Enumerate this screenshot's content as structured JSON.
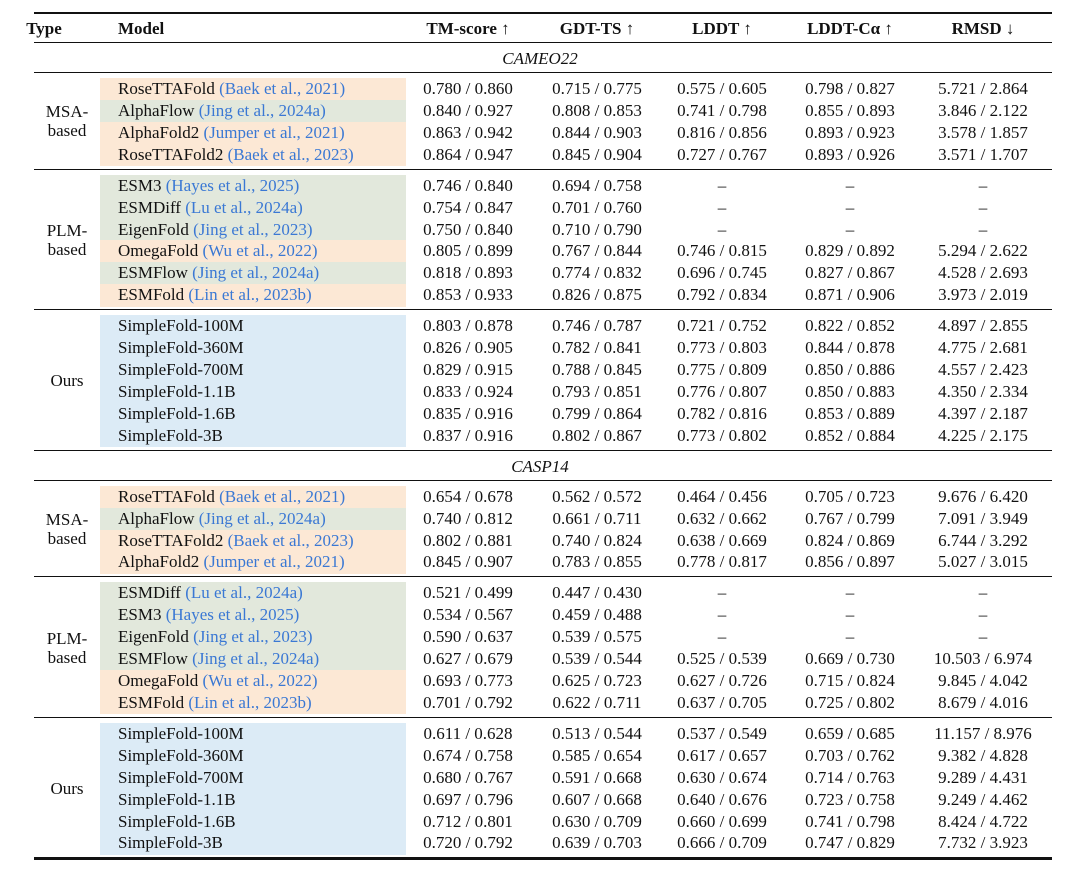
{
  "header": [
    "Type",
    "Model",
    "TM-score ↑",
    "GDT-TS ↑",
    "LDDT ↑",
    "LDDT-Cα ↑",
    "RMSD ↓"
  ],
  "sections": [
    {
      "label": "CAMEO22",
      "groups": [
        {
          "type": [
            "MSA-",
            "based"
          ],
          "rows": [
            {
              "model": "RoseTTAFold",
              "cite": "(Baek et al., 2021)",
              "shade": "#fce8d5",
              "cells": [
                "0.780 / 0.860",
                "0.715 / 0.775",
                "0.575 / 0.605",
                "0.798 / 0.827",
                "5.721 / 2.864"
              ]
            },
            {
              "model": "AlphaFlow",
              "cite": "(Jing et al., 2024a)",
              "shade": "#e2e8dc",
              "cells": [
                "0.840 / 0.927",
                "0.808 / 0.853",
                "0.741 / 0.798",
                "0.855 / 0.893",
                "3.846 / 2.122"
              ]
            },
            {
              "model": "AlphaFold2",
              "cite": "(Jumper et al., 2021)",
              "shade": "#fce8d5",
              "cells": [
                "0.863 / 0.942",
                "0.844 / 0.903",
                "0.816 / 0.856",
                "0.893 / 0.923",
                "3.578 / 1.857"
              ]
            },
            {
              "model": "RoseTTAFold2",
              "cite": "(Baek et al., 2023)",
              "shade": "#fce8d5",
              "cells": [
                "0.864 / 0.947",
                "0.845 / 0.904",
                "0.727 / 0.767",
                "0.893 / 0.926",
                "3.571 / 1.707"
              ]
            }
          ]
        },
        {
          "type": [
            "PLM-",
            "based"
          ],
          "rows": [
            {
              "model": "ESM3",
              "cite": "(Hayes et al., 2025)",
              "shade": "#e2e8dc",
              "cells": [
                "0.746 / 0.840",
                "0.694 / 0.758",
                "–",
                "–",
                "–"
              ]
            },
            {
              "model": "ESMDiff",
              "cite": "(Lu et al., 2024a)",
              "shade": "#e2e8dc",
              "cells": [
                "0.754 / 0.847",
                "0.701 / 0.760",
                "–",
                "–",
                "–"
              ]
            },
            {
              "model": "EigenFold",
              "cite": "(Jing et al., 2023)",
              "shade": "#e2e8dc",
              "cells": [
                "0.750 / 0.840",
                "0.710 / 0.790",
                "–",
                "–",
                "–"
              ]
            },
            {
              "model": "OmegaFold",
              "cite": "(Wu et al., 2022)",
              "shade": "#fce8d5",
              "cells": [
                "0.805 / 0.899",
                "0.767 / 0.844",
                "0.746 / 0.815",
                "0.829 / 0.892",
                "5.294 / 2.622"
              ]
            },
            {
              "model": "ESMFlow",
              "cite": "(Jing et al., 2024a)",
              "shade": "#e2e8dc",
              "cells": [
                "0.818 / 0.893",
                "0.774 / 0.832",
                "0.696 / 0.745",
                "0.827 / 0.867",
                "4.528 / 2.693"
              ]
            },
            {
              "model": "ESMFold",
              "cite": "(Lin et al., 2023b)",
              "shade": "#fce8d5",
              "cells": [
                "0.853 / 0.933",
                "0.826 / 0.875",
                "0.792 / 0.834",
                "0.871 / 0.906",
                "3.973 / 2.019"
              ]
            }
          ]
        },
        {
          "type": [
            "Ours"
          ],
          "rows": [
            {
              "model": "SimpleFold-100M",
              "shade": "#dcebf6",
              "cells": [
                "0.803 / 0.878",
                "0.746 / 0.787",
                "0.721 / 0.752",
                "0.822 / 0.852",
                "4.897 / 2.855"
              ]
            },
            {
              "model": "SimpleFold-360M",
              "shade": "#dcebf6",
              "cells": [
                "0.826 / 0.905",
                "0.782 / 0.841",
                "0.773 / 0.803",
                "0.844 / 0.878",
                "4.775 / 2.681"
              ]
            },
            {
              "model": "SimpleFold-700M",
              "shade": "#dcebf6",
              "cells": [
                "0.829 / 0.915",
                "0.788 / 0.845",
                "0.775 / 0.809",
                "0.850 / 0.886",
                "4.557 / 2.423"
              ]
            },
            {
              "model": "SimpleFold-1.1B",
              "shade": "#dcebf6",
              "cells": [
                "0.833 / 0.924",
                "0.793 / 0.851",
                "0.776 / 0.807",
                "0.850 / 0.883",
                "4.350 / 2.334"
              ]
            },
            {
              "model": "SimpleFold-1.6B",
              "shade": "#dcebf6",
              "cells": [
                "0.835 / 0.916",
                "0.799 / 0.864",
                "0.782 / 0.816",
                "0.853 / 0.889",
                "4.397 / 2.187"
              ]
            },
            {
              "model": "SimpleFold-3B",
              "shade": "#dcebf6",
              "cells": [
                "0.837 / 0.916",
                "0.802 / 0.867",
                "0.773 / 0.802",
                "0.852 / 0.884",
                "4.225 / 2.175"
              ]
            }
          ]
        }
      ]
    },
    {
      "label": "CASP14",
      "groups": [
        {
          "type": [
            "MSA-",
            "based"
          ],
          "rows": [
            {
              "model": "RoseTTAFold",
              "cite": "(Baek et al., 2021)",
              "shade": "#fce8d5",
              "cells": [
                "0.654 / 0.678",
                "0.562 / 0.572",
                "0.464 / 0.456",
                "0.705 / 0.723",
                "9.676 / 6.420"
              ]
            },
            {
              "model": "AlphaFlow",
              "cite": "(Jing et al., 2024a)",
              "shade": "#e2e8dc",
              "cells": [
                "0.740 / 0.812",
                "0.661 / 0.711",
                "0.632 / 0.662",
                "0.767 / 0.799",
                "7.091 / 3.949"
              ]
            },
            {
              "model": "RoseTTAFold2",
              "cite": "(Baek et al., 2023)",
              "shade": "#fce8d5",
              "cells": [
                "0.802 / 0.881",
                "0.740 / 0.824",
                "0.638 / 0.669",
                "0.824 / 0.869",
                "6.744 / 3.292"
              ]
            },
            {
              "model": "AlphaFold2",
              "cite": "(Jumper et al., 2021)",
              "shade": "#fce8d5",
              "cells": [
                "0.845 / 0.907",
                "0.783 / 0.855",
                "0.778 / 0.817",
                "0.856 / 0.897",
                "5.027 / 3.015"
              ]
            }
          ]
        },
        {
          "type": [
            "PLM-",
            "based"
          ],
          "rows": [
            {
              "model": "ESMDiff",
              "cite": "(Lu et al., 2024a)",
              "shade": "#e2e8dc",
              "cells": [
                "0.521 / 0.499",
                "0.447 / 0.430",
                "–",
                "–",
                "–"
              ]
            },
            {
              "model": "ESM3",
              "cite": "(Hayes et al., 2025)",
              "shade": "#e2e8dc",
              "cells": [
                "0.534 / 0.567",
                "0.459 / 0.488",
                "–",
                "–",
                "–"
              ]
            },
            {
              "model": "EigenFold",
              "cite": "(Jing et al., 2023)",
              "shade": "#e2e8dc",
              "cells": [
                "0.590 / 0.637",
                "0.539 / 0.575",
                "–",
                "–",
                "–"
              ]
            },
            {
              "model": "ESMFlow",
              "cite": "(Jing et al., 2024a)",
              "shade": "#e2e8dc",
              "cells": [
                "0.627 / 0.679",
                "0.539 / 0.544",
                "0.525 / 0.539",
                "0.669 / 0.730",
                "10.503 / 6.974"
              ]
            },
            {
              "model": "OmegaFold",
              "cite": "(Wu et al., 2022)",
              "shade": "#fce8d5",
              "cells": [
                "0.693 / 0.773",
                "0.625 / 0.723",
                "0.627 / 0.726",
                "0.715 / 0.824",
                "9.845 / 4.042"
              ]
            },
            {
              "model": "ESMFold",
              "cite": "(Lin et al., 2023b)",
              "shade": "#fce8d5",
              "cells": [
                "0.701 / 0.792",
                "0.622 / 0.711",
                "0.637 / 0.705",
                "0.725 / 0.802",
                "8.679 / 4.016"
              ]
            }
          ]
        },
        {
          "type": [
            "Ours"
          ],
          "rows": [
            {
              "model": "SimpleFold-100M",
              "shade": "#dcebf6",
              "cells": [
                "0.611 / 0.628",
                "0.513 / 0.544",
                "0.537 / 0.549",
                "0.659 / 0.685",
                "11.157 / 8.976"
              ]
            },
            {
              "model": "SimpleFold-360M",
              "shade": "#dcebf6",
              "cells": [
                "0.674 / 0.758",
                "0.585 / 0.654",
                "0.617 / 0.657",
                "0.703 / 0.762",
                "9.382 / 4.828"
              ]
            },
            {
              "model": "SimpleFold-700M",
              "shade": "#dcebf6",
              "cells": [
                "0.680 / 0.767",
                "0.591 / 0.668",
                "0.630 / 0.674",
                "0.714 / 0.763",
                "9.289 / 4.431"
              ]
            },
            {
              "model": "SimpleFold-1.1B",
              "shade": "#dcebf6",
              "cells": [
                "0.697 / 0.796",
                "0.607 / 0.668",
                "0.640 / 0.676",
                "0.723 / 0.758",
                "9.249 / 4.462"
              ]
            },
            {
              "model": "SimpleFold-1.6B",
              "shade": "#dcebf6",
              "cells": [
                "0.712 / 0.801",
                "0.630 / 0.709",
                "0.660 / 0.699",
                "0.741 / 0.798",
                "8.424 / 4.722"
              ]
            },
            {
              "model": "SimpleFold-3B",
              "shade": "#dcebf6",
              "cells": [
                "0.720 / 0.792",
                "0.639 / 0.703",
                "0.666 / 0.709",
                "0.747 / 0.829",
                "7.732 / 3.923"
              ]
            }
          ]
        }
      ]
    }
  ]
}
